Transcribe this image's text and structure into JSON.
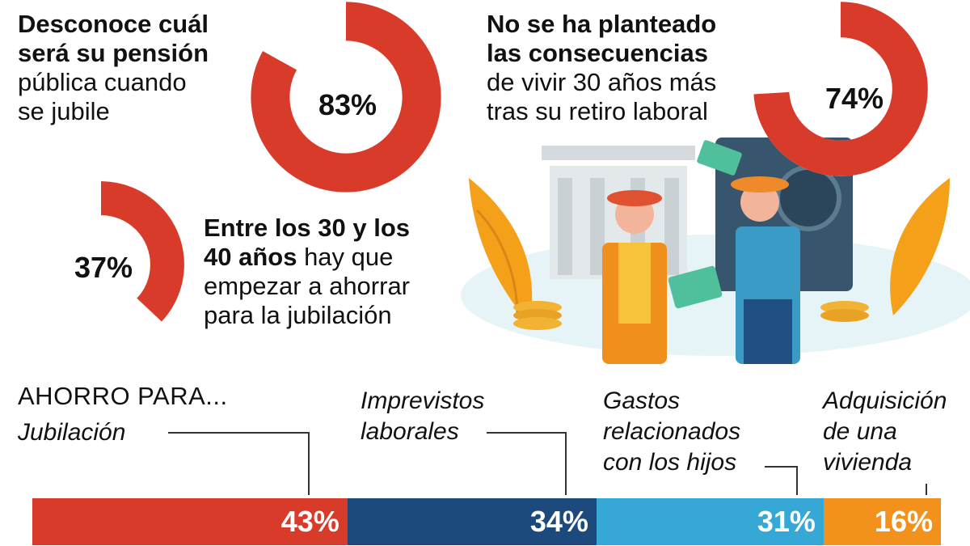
{
  "stat_pension": {
    "line1": "Desconoce cuál",
    "line2": "será su pensión",
    "line3": "pública cuando",
    "line4": "se jubile",
    "value": 83,
    "value_label": "83%"
  },
  "stat_age": {
    "line1": "Entre los 30 y los",
    "line2_bold": "40 años",
    "line2_rest": " hay que",
    "line3": "empezar a ahorrar",
    "line4": "para la jubilación",
    "value": 37,
    "value_label": "37%"
  },
  "stat_retirement": {
    "line1": "No se ha planteado",
    "line2": "las consecuencias",
    "line3": "de vivir 30 años más",
    "line4": "tras su retiro laboral",
    "value": 74,
    "value_label": "74%"
  },
  "savings_heading": "AHORRO PARA...",
  "colors": {
    "red": "#d93b2b",
    "navy": "#1c4a7d",
    "cyan": "#35a8d6",
    "orange": "#f2921c"
  },
  "chart_data": [
    {
      "type": "pie",
      "subtype": "donut",
      "values": [
        83
      ],
      "labels": [
        "83%"
      ],
      "max": 100
    },
    {
      "type": "pie",
      "subtype": "donut",
      "values": [
        37
      ],
      "labels": [
        "37%"
      ],
      "max": 100
    },
    {
      "type": "pie",
      "subtype": "donut",
      "values": [
        74
      ],
      "labels": [
        "74%"
      ],
      "max": 100
    },
    {
      "type": "bar",
      "orientation": "horizontal-stacked",
      "title": "AHORRO PARA...",
      "categories": [
        "Jubilación",
        "Imprevistos laborales",
        "Gastos relacionados con los hijos",
        "Adquisición de una vivienda"
      ],
      "category_lines": [
        [
          "Jubilación"
        ],
        [
          "Imprevistos",
          "laborales"
        ],
        [
          "Gastos",
          "relacionados",
          "con los hijos"
        ],
        [
          "Adquisición",
          "de una",
          "vivienda"
        ]
      ],
      "values": [
        43,
        34,
        31,
        16
      ],
      "value_labels": [
        "43%",
        "34%",
        "31%",
        "16%"
      ],
      "colors": [
        "#d93b2b",
        "#1c4a7d",
        "#35a8d6",
        "#f2921c"
      ]
    }
  ]
}
